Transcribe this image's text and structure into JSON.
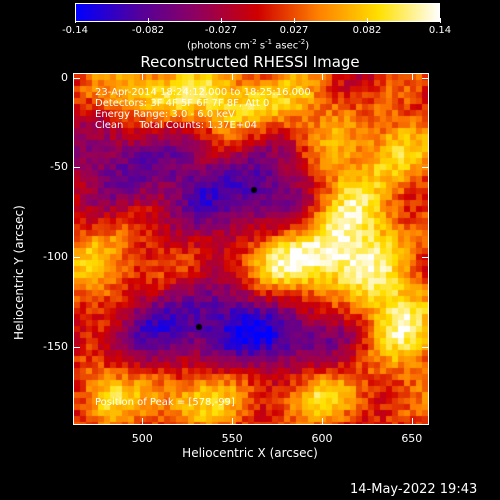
{
  "colorbar": {
    "ticks": [
      "-0.14",
      "-0.082",
      "-0.027",
      "0.027",
      "0.082",
      "0.14"
    ],
    "units": "(photons cm",
    "units_sup1": "-2",
    "units_mid": " s",
    "units_sup2": "-1",
    "units_mid2": " asec",
    "units_sup3": "-2",
    "units_end": ")"
  },
  "plot": {
    "title": "Reconstructed RHESSI Image",
    "info_line1": "23-Apr-2014 18:24:12.000 to 18:25:16.000",
    "info_line2": "Detectors: 3F 4F 5F 6F 7F 8F, Att 0",
    "info_line3": "Energy Range: 3.0 - 6.0 keV",
    "info_line4": "Clean     Total Counts: 1.37E+04",
    "peak_text": "Position of Peak = [578,-99]",
    "x_ticks": [
      "500",
      "550",
      "600",
      "650"
    ],
    "y_ticks": [
      "0",
      "-50",
      "-100",
      "-150"
    ],
    "xlabel": "Heliocentric X (arcsec)",
    "ylabel": "Heliocentric Y (arcsec)"
  },
  "timestamp": "14-May-2022 19:43",
  "chart_data": {
    "type": "heatmap",
    "title": "Reconstructed RHESSI Image",
    "xlabel": "Heliocentric X (arcsec)",
    "ylabel": "Heliocentric Y (arcsec)",
    "xlim": [
      462,
      659
    ],
    "ylim": [
      -193,
      2
    ],
    "colorbar_range": [
      -0.14,
      0.14
    ],
    "colormap": [
      "#0000ff",
      "#5000a0",
      "#900060",
      "#d00000",
      "#ff8000",
      "#ffe000",
      "#ffffff"
    ],
    "peak": [
      578,
      -99
    ]
  }
}
